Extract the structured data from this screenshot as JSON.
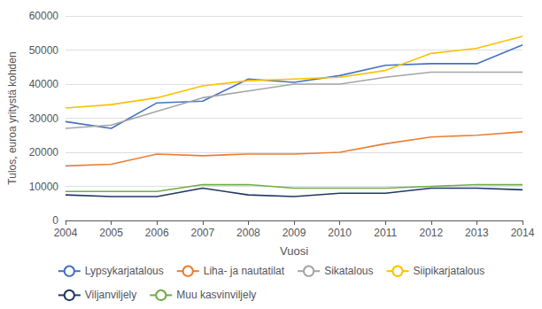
{
  "chart_data": {
    "type": "line",
    "xlabel": "Vuosi",
    "ylabel": "Tulos, euroa yritystä kohden",
    "x": [
      2004,
      2005,
      2006,
      2007,
      2008,
      2009,
      2010,
      2011,
      2012,
      2013,
      2014
    ],
    "xlim": [
      2004,
      2014
    ],
    "xticks": [
      2004,
      2005,
      2006,
      2007,
      2008,
      2009,
      2010,
      2011,
      2012,
      2013,
      2014
    ],
    "ylim": [
      0,
      60000
    ],
    "yticks": [
      0,
      10000,
      20000,
      30000,
      40000,
      50000,
      60000
    ],
    "grid": true,
    "legend": "bottom",
    "series": [
      {
        "name": "Lypsykarjatalous",
        "color": "#4472C4",
        "values": [
          29000,
          27000,
          34500,
          35000,
          41500,
          40500,
          42500,
          45500,
          46000,
          46000,
          51500
        ]
      },
      {
        "name": "Liha- ja nautatilat",
        "color": "#ED7D31",
        "values": [
          16000,
          16500,
          19500,
          19000,
          19500,
          19500,
          20000,
          22500,
          24500,
          25000,
          26000
        ]
      },
      {
        "name": "Sikatalous",
        "color": "#A5A5A5",
        "values": [
          27000,
          28000,
          32000,
          36000,
          38000,
          40000,
          40000,
          42000,
          43500,
          43500,
          43500
        ]
      },
      {
        "name": "Siipikarjatalous",
        "color": "#FFC000",
        "values": [
          33000,
          34000,
          36000,
          39500,
          41000,
          41500,
          42000,
          44000,
          49000,
          50500,
          54000
        ]
      },
      {
        "name": "Viljanviljely",
        "color": "#203864",
        "values": [
          7500,
          7000,
          7000,
          9500,
          7500,
          7000,
          8000,
          8000,
          9500,
          9500,
          9000
        ]
      },
      {
        "name": "Muu kasvinviljely",
        "color": "#70AD47",
        "values": [
          8500,
          8500,
          8500,
          10500,
          10500,
          9500,
          9500,
          9500,
          10000,
          10500,
          10500
        ]
      }
    ]
  }
}
